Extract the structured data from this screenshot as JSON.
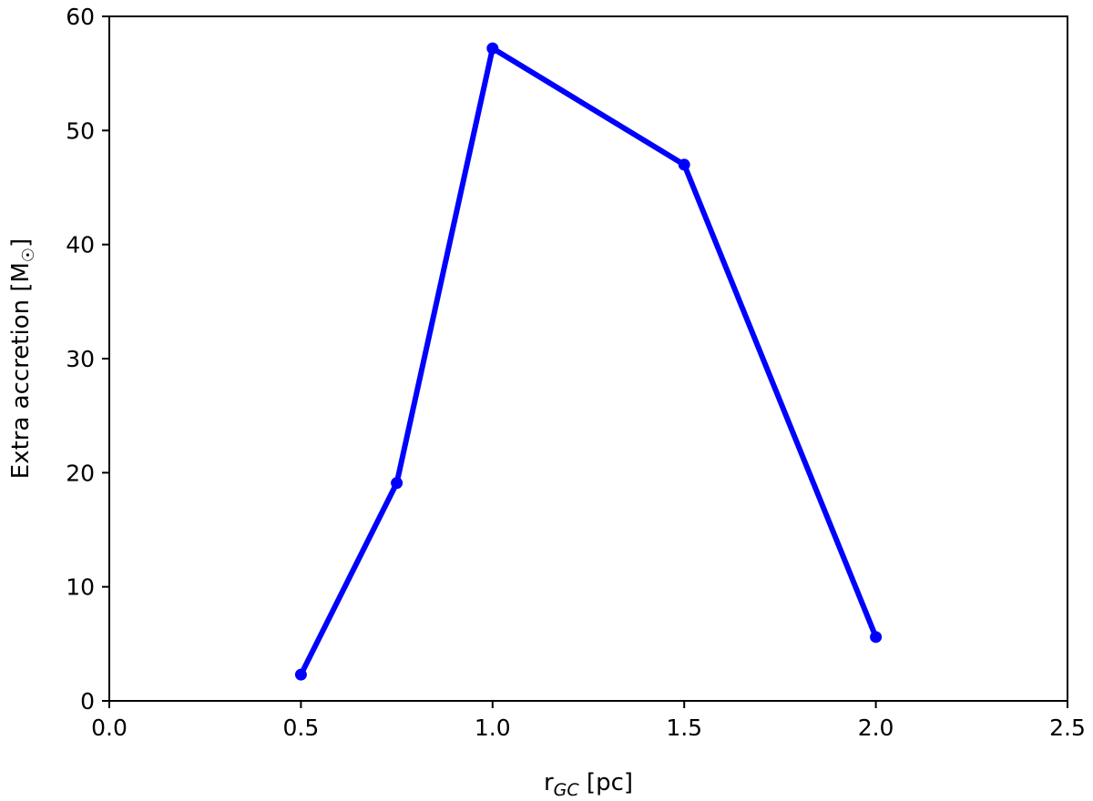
{
  "chart_data": {
    "type": "line",
    "xlabel": {
      "main": "r",
      "sub": "GC",
      "rest": " [pc]"
    },
    "ylabel": {
      "main": "Extra accretion [M",
      "sub": "☉",
      "rest": "]"
    },
    "xlim": [
      0.0,
      2.5
    ],
    "ylim": [
      0,
      60
    ],
    "x_ticks": [
      "0.0",
      "0.5",
      "1.0",
      "1.5",
      "2.0",
      "2.5"
    ],
    "y_ticks": [
      "0",
      "10",
      "20",
      "30",
      "40",
      "50",
      "60"
    ],
    "grid": false,
    "series": [
      {
        "color": "#0000ff",
        "marker": "circle",
        "x": [
          0.5,
          0.75,
          1.0,
          1.5,
          2.0
        ],
        "y": [
          2.3,
          19.1,
          57.2,
          47.0,
          5.6
        ]
      }
    ]
  }
}
